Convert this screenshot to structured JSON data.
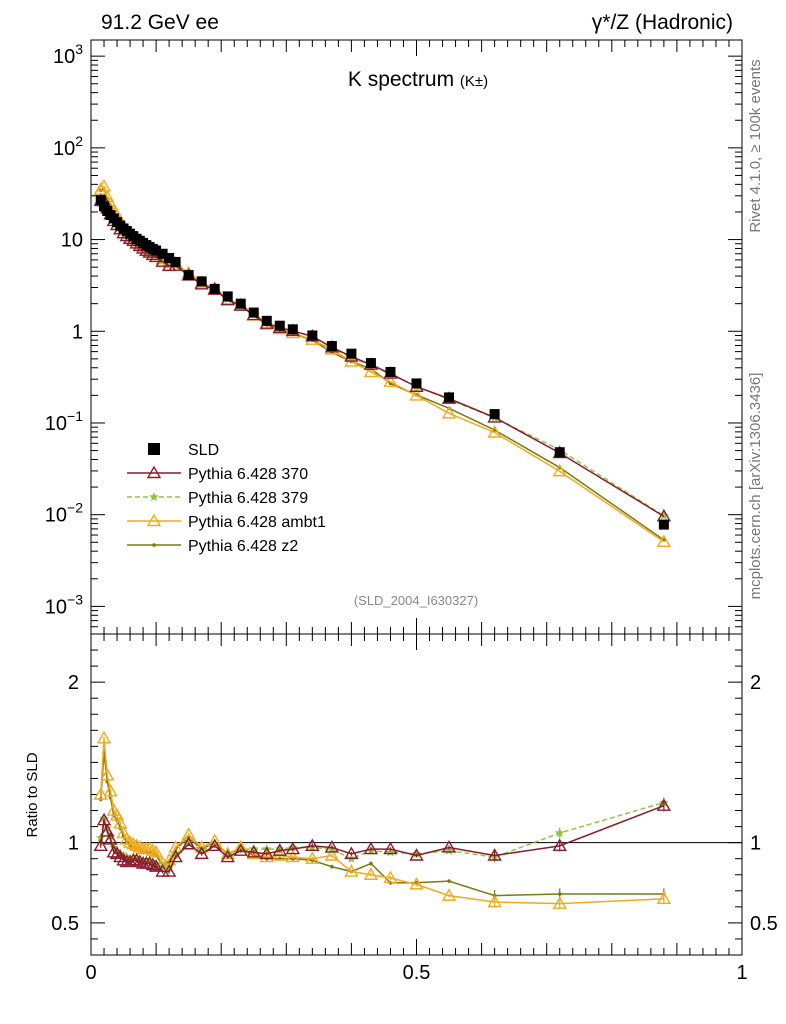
{
  "header": {
    "left": "91.2 GeV ee",
    "right": "γ*/Z (Hadronic)"
  },
  "side": {
    "rivet": "Rivet 4.1.0, ≥ 100k events",
    "mcplots": "mcplots.cern.ch [arXiv:1306.3436]"
  },
  "chart_data": {
    "type": "scatter",
    "title": "K spectrum",
    "title_sub": "(K±)",
    "analysis_id": "(SLD_2004_I630327)",
    "xlim": [
      0,
      1
    ],
    "upper_ylim": [
      0.0005,
      1500
    ],
    "upper_yscale": "log",
    "upper_yticks": [
      {
        "v": 1000,
        "b": "10",
        "e": "3"
      },
      {
        "v": 100,
        "b": "10",
        "e": "2"
      },
      {
        "v": 10,
        "b": "10",
        "e": ""
      },
      {
        "v": 1,
        "b": "1",
        "e": ""
      },
      {
        "v": 0.1,
        "b": "10",
        "e": "−1"
      },
      {
        "v": 0.01,
        "b": "10",
        "e": "−2"
      },
      {
        "v": 0.001,
        "b": "10",
        "e": "−3"
      }
    ],
    "ratio_ylabel": "Ratio to SLD",
    "ratio_ylim": [
      0.3,
      2.3
    ],
    "ratio_yticks": [
      {
        "v": 0.5,
        "label": "0.5"
      },
      {
        "v": 1,
        "label": "1"
      },
      {
        "v": 2,
        "label": "2"
      }
    ],
    "xticks": [
      {
        "v": 0,
        "label": "0"
      },
      {
        "v": 0.5,
        "label": "0.5"
      },
      {
        "v": 1,
        "label": "1"
      }
    ],
    "legend_position": "lower-left",
    "x": [
      0.015,
      0.02,
      0.025,
      0.03,
      0.035,
      0.04,
      0.045,
      0.05,
      0.055,
      0.06,
      0.065,
      0.07,
      0.075,
      0.08,
      0.085,
      0.09,
      0.095,
      0.1,
      0.11,
      0.12,
      0.13,
      0.15,
      0.17,
      0.19,
      0.21,
      0.23,
      0.25,
      0.27,
      0.29,
      0.31,
      0.34,
      0.37,
      0.4,
      0.43,
      0.46,
      0.5,
      0.55,
      0.62,
      0.72,
      0.88
    ],
    "series": [
      {
        "name": "SLD",
        "color": "#000000",
        "marker": "square",
        "line": "none",
        "values": [
          27,
          23,
          20.5,
          18.5,
          17,
          15.5,
          14.2,
          13.2,
          12.4,
          11.6,
          10.9,
          10.2,
          9.7,
          9.2,
          8.7,
          8.3,
          7.9,
          7.6,
          7.0,
          6.3,
          5.7,
          4.1,
          3.5,
          2.9,
          2.4,
          2.0,
          1.6,
          1.3,
          1.15,
          1.05,
          0.9,
          0.69,
          0.57,
          0.45,
          0.36,
          0.27,
          0.19,
          0.125,
          0.048,
          0.0078
        ]
      },
      {
        "name": "Pythia 6.428 370",
        "color": "#8b1a2e",
        "marker": "triangle-open",
        "line": "solid",
        "ratio": [
          0.98,
          1.14,
          1.07,
          1.02,
          0.94,
          0.93,
          0.91,
          0.89,
          0.88,
          0.88,
          0.89,
          0.89,
          0.88,
          0.87,
          0.87,
          0.87,
          0.86,
          0.85,
          0.82,
          0.82,
          0.91,
          0.99,
          0.93,
          0.98,
          0.91,
          0.95,
          0.94,
          0.93,
          0.95,
          0.96,
          0.98,
          0.97,
          0.93,
          0.96,
          0.96,
          0.92,
          0.97,
          0.92,
          0.98,
          1.23
        ]
      },
      {
        "name": "Pythia 6.428 379",
        "color": "#8ec63f",
        "marker": "star",
        "line": "dashed",
        "ratio": [
          1.03,
          1.15,
          1.09,
          1.04,
          0.97,
          0.95,
          0.93,
          0.92,
          0.91,
          0.9,
          0.9,
          0.9,
          0.89,
          0.89,
          0.89,
          0.89,
          0.88,
          0.87,
          0.85,
          0.84,
          0.92,
          1.0,
          0.95,
          0.99,
          0.93,
          0.96,
          0.96,
          0.96,
          0.96,
          0.97,
          0.97,
          0.96,
          0.9,
          0.95,
          0.94,
          0.93,
          0.95,
          0.91,
          1.06,
          1.25
        ]
      },
      {
        "name": "Pythia 6.428 ambt1",
        "color": "#f2a91c",
        "marker": "triangle-open",
        "line": "solid",
        "ratio": [
          1.3,
          1.65,
          1.42,
          1.32,
          1.2,
          1.17,
          1.12,
          1.06,
          1.02,
          1.0,
          0.99,
          0.98,
          0.97,
          0.96,
          0.96,
          0.96,
          0.95,
          0.94,
          0.87,
          0.89,
          0.97,
          1.05,
          0.97,
          1.01,
          0.93,
          0.97,
          0.93,
          0.91,
          0.92,
          0.91,
          0.9,
          0.92,
          0.82,
          0.8,
          0.78,
          0.74,
          0.67,
          0.63,
          0.62,
          0.65
        ]
      },
      {
        "name": "Pythia 6.428 z2",
        "color": "#7a7a10",
        "marker": "dot",
        "line": "solid",
        "ratio": [
          1.27,
          1.56,
          1.38,
          1.28,
          1.17,
          1.14,
          1.09,
          1.04,
          1.0,
          0.98,
          0.97,
          0.96,
          0.95,
          0.94,
          0.94,
          0.94,
          0.93,
          0.92,
          0.86,
          0.88,
          0.96,
          1.03,
          0.96,
          1.0,
          0.93,
          0.96,
          0.92,
          0.9,
          0.9,
          0.9,
          0.89,
          0.85,
          0.82,
          0.87,
          0.75,
          0.75,
          0.76,
          0.67,
          0.68,
          0.68
        ]
      }
    ]
  }
}
